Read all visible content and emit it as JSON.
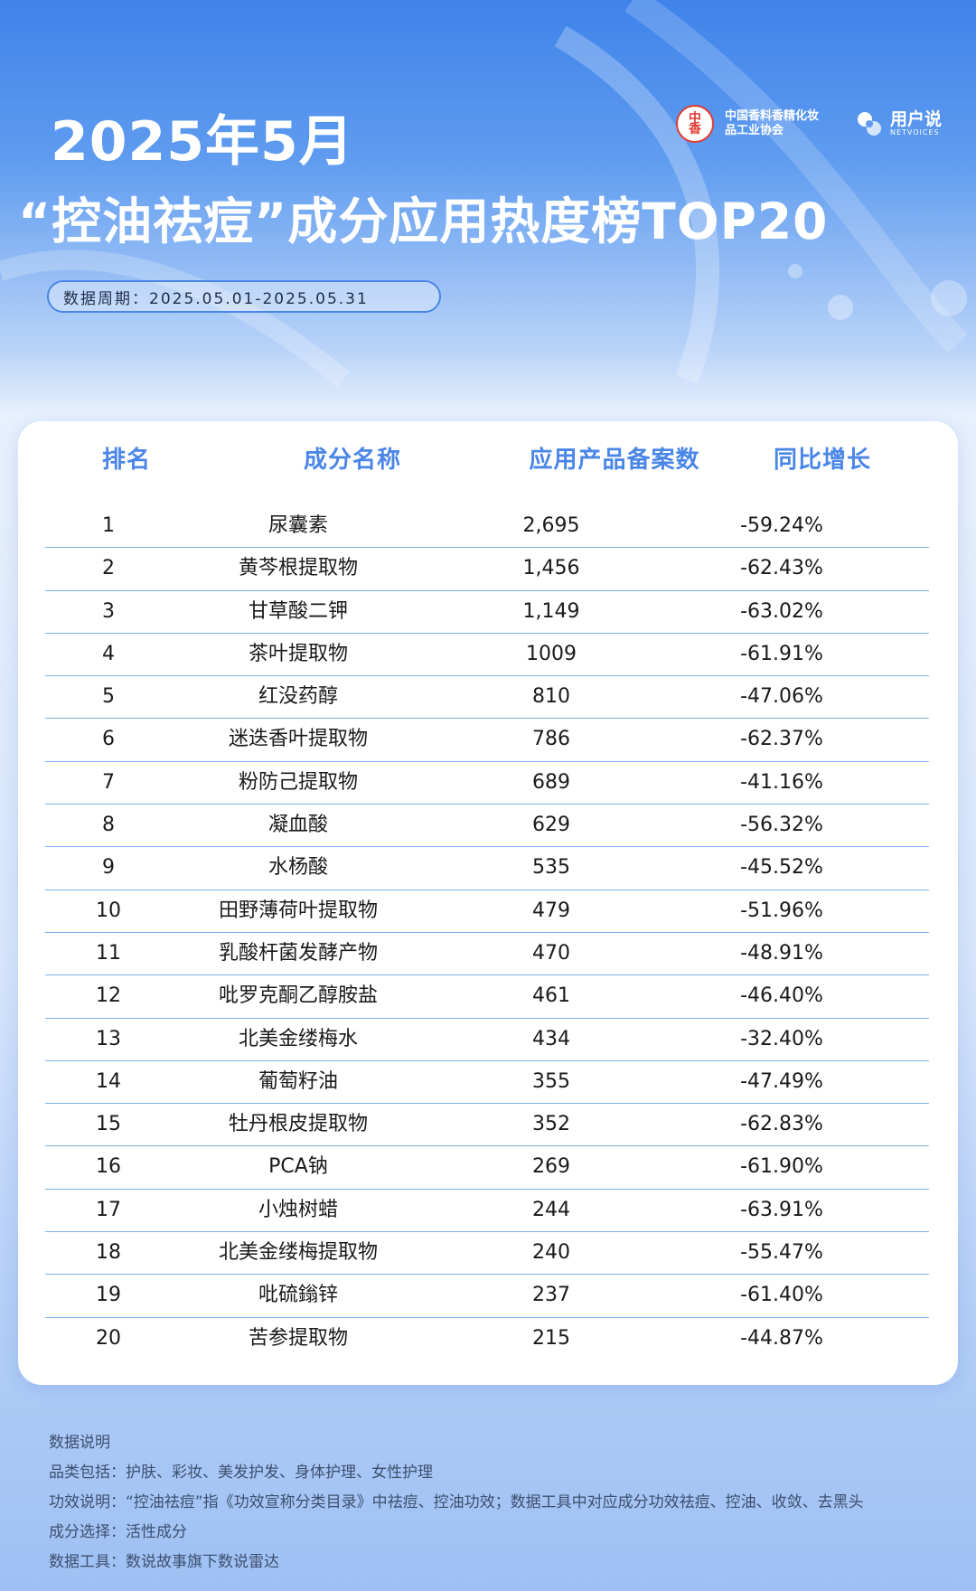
{
  "header": {
    "title_year": "2025年5月",
    "title_main": "“控油祛痘”成分应用热度榜TOP20",
    "period": "数据周期：2025.05.01-2025.05.31",
    "logo_assoc": {
      "seal_text": "中國香妝",
      "name": "中国香料香精化妆品工业协会"
    },
    "logo_netvoices": {
      "name_cn": "用户说",
      "name_en": "NETVOICES"
    }
  },
  "table": {
    "columns": [
      "排名",
      "成分名称",
      "应用产品备案数",
      "同比增长"
    ],
    "rows": [
      {
        "rank": "1",
        "name": "尿囊素",
        "count": "2,695",
        "yoy": "-59.24%"
      },
      {
        "rank": "2",
        "name": "黄芩根提取物",
        "count": "1,456",
        "yoy": "-62.43%"
      },
      {
        "rank": "3",
        "name": "甘草酸二钾",
        "count": "1,149",
        "yoy": "-63.02%"
      },
      {
        "rank": "4",
        "name": "茶叶提取物",
        "count": "1009",
        "yoy": "-61.91%"
      },
      {
        "rank": "5",
        "name": "红没药醇",
        "count": "810",
        "yoy": "-47.06%"
      },
      {
        "rank": "6",
        "name": "迷迭香叶提取物",
        "count": "786",
        "yoy": "-62.37%"
      },
      {
        "rank": "7",
        "name": "粉防己提取物",
        "count": "689",
        "yoy": "-41.16%"
      },
      {
        "rank": "8",
        "name": "凝血酸",
        "count": "629",
        "yoy": "-56.32%"
      },
      {
        "rank": "9",
        "name": "水杨酸",
        "count": "535",
        "yoy": "-45.52%"
      },
      {
        "rank": "10",
        "name": "田野薄荷叶提取物",
        "count": "479",
        "yoy": "-51.96%"
      },
      {
        "rank": "11",
        "name": "乳酸杆菌发酵产物",
        "count": "470",
        "yoy": "-48.91%"
      },
      {
        "rank": "12",
        "name": "吡罗克酮乙醇胺盐",
        "count": "461",
        "yoy": "-46.40%"
      },
      {
        "rank": "13",
        "name": "北美金缕梅水",
        "count": "434",
        "yoy": "-32.40%"
      },
      {
        "rank": "14",
        "name": "葡萄籽油",
        "count": "355",
        "yoy": "-47.49%"
      },
      {
        "rank": "15",
        "name": "牡丹根皮提取物",
        "count": "352",
        "yoy": "-62.83%"
      },
      {
        "rank": "16",
        "name": "PCA钠",
        "count": "269",
        "yoy": "-61.90%"
      },
      {
        "rank": "17",
        "name": "小烛树蜡",
        "count": "244",
        "yoy": "-63.91%"
      },
      {
        "rank": "18",
        "name": "北美金缕梅提取物",
        "count": "240",
        "yoy": "-55.47%"
      },
      {
        "rank": "19",
        "name": "吡硫鎓锌",
        "count": "237",
        "yoy": "-61.40%"
      },
      {
        "rank": "20",
        "name": "苦参提取物",
        "count": "215",
        "yoy": "-44.87%"
      }
    ]
  },
  "notes": {
    "title": "数据说明",
    "category": "品类包括：护肤、彩妆、美发护发、身体护理、女性护理",
    "efficacy": "功效说明：“控油祛痘”指《功效宣称分类目录》中祛痘、控油功效；数据工具中对应成分功效祛痘、控油、收敛、去黑头",
    "selection": "成分选择：活性成分",
    "tool": "数据工具：数说故事旗下数说雷达"
  },
  "colors": {
    "accent": "#4a86e8",
    "header_bg": "#3f83ea",
    "divider": "#7fb0ee"
  }
}
